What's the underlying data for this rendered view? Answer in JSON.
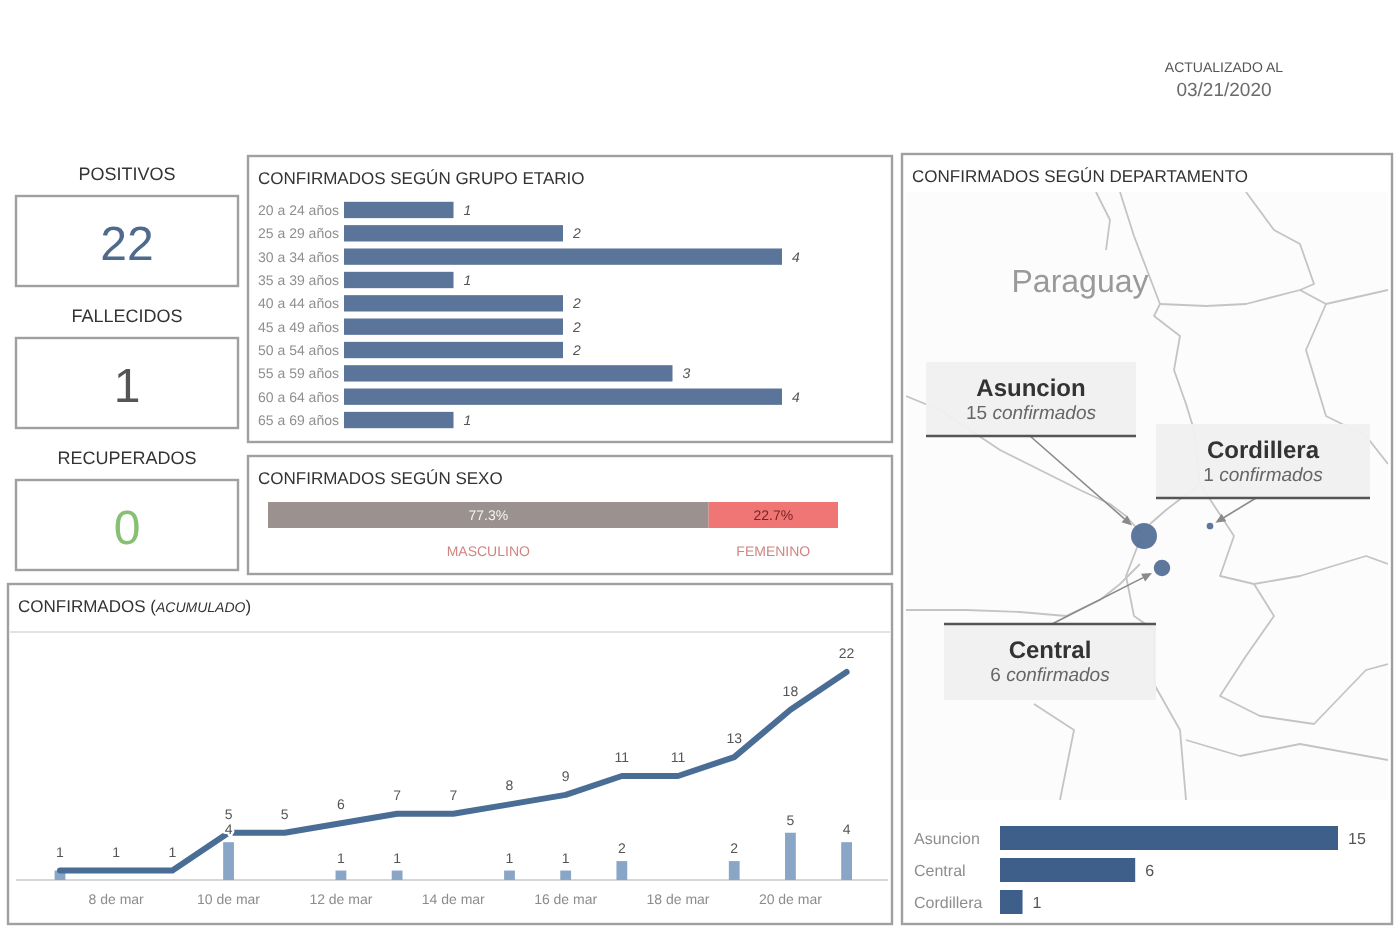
{
  "chart_data": [
    {
      "type": "other",
      "title": "ACTUALIZADO AL",
      "subtitle": "03/21/2020"
    },
    {
      "type": "other",
      "categories": [
        "POSITIVOS",
        "FALLECIDOS",
        "RECUPERADOS"
      ],
      "values": [
        22,
        1,
        0
      ],
      "colors": [
        "#4e6a8c",
        "#555555",
        "#86c073"
      ],
      "data_labels": true
    },
    {
      "type": "bar",
      "orientation": "horizontal",
      "title": "CONFIRMADOS SEGÚN GRUPO ETARIO",
      "categories": [
        "20 a 24 años",
        "25 a 29 años",
        "30 a 34 años",
        "35 a 39 años",
        "40 a 44 años",
        "45 a 49 años",
        "50 a 54 años",
        "55 a 59 años",
        "60 a 64 años",
        "65 a 69 años"
      ],
      "values": [
        1,
        2,
        4,
        1,
        2,
        2,
        2,
        3,
        4,
        1
      ],
      "color": "#5b7499",
      "data_labels": true
    },
    {
      "type": "bar",
      "orientation": "horizontal",
      "stacked": true,
      "title": "CONFIRMADOS SEGÚN SEXO",
      "categories": [
        null
      ],
      "series": [
        {
          "name": "MASCULINO",
          "color": "#9b918e",
          "values": [
            77.3
          ],
          "value_labels": [
            "77.3%"
          ]
        },
        {
          "name": "FEMENINO",
          "color": "#f07575",
          "values": [
            22.7
          ],
          "value_labels": [
            "22.7%"
          ]
        }
      ]
    },
    {
      "type": "line",
      "title": "CONFIRMADOS (ACUMULADO)",
      "categories": [
        null,
        "8 de mar",
        null,
        "10 de mar",
        null,
        "12 de mar",
        null,
        "14 de mar",
        null,
        "16 de mar",
        null,
        "18 de mar",
        null,
        "20 de mar",
        null
      ],
      "tick_labels": "x",
      "series": [
        {
          "type": "bar",
          "color": "#8aa6c6",
          "values": [
            1,
            null,
            null,
            4,
            null,
            1,
            1,
            null,
            1,
            1,
            2,
            null,
            2,
            5,
            4
          ],
          "value_labels": [
            null,
            null,
            null,
            "4",
            null,
            "1",
            "1",
            null,
            "1",
            "1",
            "2",
            null,
            "2",
            "5",
            "4"
          ]
        },
        {
          "type": "line",
          "color": "#4a6d96",
          "values": [
            1,
            1,
            1,
            5,
            5,
            6,
            7,
            7,
            8,
            9,
            11,
            11,
            13,
            18,
            22
          ],
          "value_labels": [
            "1",
            "1",
            "1",
            "5",
            "5",
            "6",
            "7",
            "7",
            "8",
            "9",
            "11",
            "11",
            "13",
            "18",
            "22"
          ]
        }
      ]
    },
    {
      "type": "other",
      "title": "CONFIRMADOS SEGÚN DEPARTAMENTO",
      "annotations": [
        "Paraguay"
      ],
      "categories": [
        "Asuncion",
        "Cordillera",
        "Central"
      ],
      "values": [
        15,
        1,
        6
      ],
      "value_labels": [
        "15 confirmados",
        "1 confirmados",
        "6 confirmados"
      ],
      "color": "#4f6d94"
    },
    {
      "type": "bar",
      "orientation": "horizontal",
      "categories": [
        "Asuncion",
        "Central",
        "Cordillera"
      ],
      "values": [
        15,
        6,
        1
      ],
      "color": "#3d5f8a",
      "data_labels": true
    }
  ]
}
